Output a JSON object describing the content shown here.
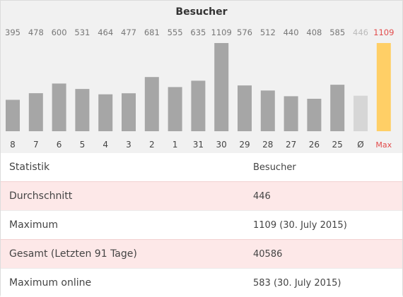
{
  "chart_data": {
    "type": "bar",
    "title": "Besucher",
    "categories": [
      "8",
      "7",
      "6",
      "5",
      "4",
      "3",
      "2",
      "1",
      "31",
      "30",
      "29",
      "28",
      "27",
      "26",
      "25",
      "Ø",
      "Max"
    ],
    "values": [
      395,
      478,
      600,
      531,
      464,
      477,
      681,
      555,
      635,
      1109,
      576,
      512,
      440,
      408,
      585,
      446,
      1109
    ],
    "value_labels": [
      "395",
      "478",
      "600",
      "531",
      "464",
      "477",
      "681",
      "555",
      "635",
      "1109",
      "576",
      "512",
      "440",
      "408",
      "585",
      "446",
      "1109"
    ],
    "ylim": [
      0,
      1109
    ],
    "grid": false,
    "colors": {
      "bar": "#a6a6a6",
      "average": "#d6d6d6",
      "max": "#ffcf66",
      "label": "#777777",
      "average_label": "#bbbbbb",
      "max_label": "#e24b4b"
    }
  },
  "table": {
    "header": {
      "col1": "Statistik",
      "col2": "Besucher"
    },
    "rows": [
      {
        "label": "Durchschnitt",
        "value": "446"
      },
      {
        "label": "Maximum",
        "value": "1109 (30. July 2015)"
      },
      {
        "label": "Gesamt (Letzten 91 Tage)",
        "value": "40586"
      },
      {
        "label": "Maximum online",
        "value": "583 (30. July 2015)"
      }
    ]
  }
}
